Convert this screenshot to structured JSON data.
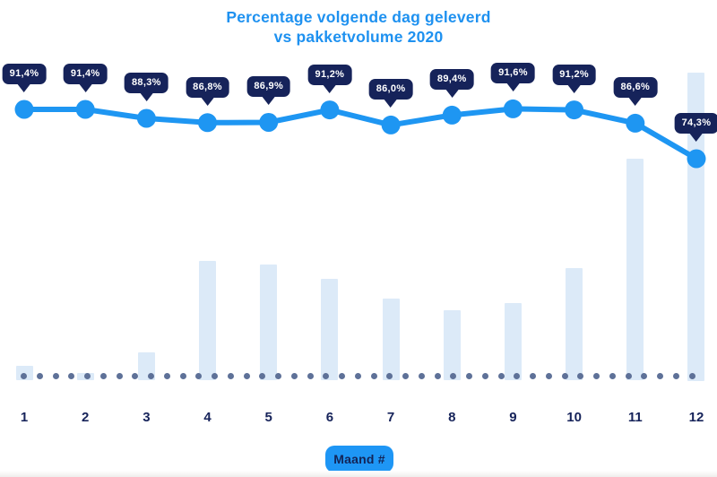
{
  "title": {
    "line1": "Percentage volgende dag geleverd",
    "line2": "vs pakketvolume 2020"
  },
  "x_axis": {
    "label": "Maand #",
    "categories": [
      "1",
      "2",
      "3",
      "4",
      "5",
      "6",
      "7",
      "8",
      "9",
      "10",
      "11",
      "12"
    ]
  },
  "chart_data": {
    "type": "line",
    "title": "Percentage volgende dag geleverd vs pakketvolume 2020",
    "categories": [
      1,
      2,
      3,
      4,
      5,
      6,
      7,
      8,
      9,
      10,
      11,
      12
    ],
    "xlabel": "Maand #",
    "ylabel": "",
    "legend": "none",
    "grid": "no gridlines; dotted baseline along x-axis; no numeric y-axis shown",
    "series": [
      {
        "name": "Percentage volgende dag geleverd",
        "type": "line",
        "unit": "%",
        "values": [
          91.4,
          91.4,
          88.3,
          86.8,
          86.9,
          91.2,
          86.0,
          89.4,
          91.6,
          91.2,
          86.6,
          74.3
        ],
        "point_labels": [
          "91,4%",
          "91,4%",
          "88,3%",
          "86,8%",
          "86,9%",
          "91,2%",
          "86,0%",
          "89,4%",
          "91,6%",
          "91,2%",
          "86,6%",
          "74,3%"
        ]
      },
      {
        "name": "Pakketvolume 2020",
        "type": "bar",
        "unit": "relative volume, % of December (no numeric axis shown)",
        "values_pct_of_max": [
          4.7,
          2.6,
          9.3,
          38.9,
          37.7,
          32.9,
          26.6,
          22.9,
          25.3,
          36.5,
          72.1,
          100
        ]
      }
    ]
  },
  "colors": {
    "accent_blue": "#1e96f2",
    "badge_navy": "#16235a",
    "bar_fill": "#dceaf8",
    "baseline_dot": "#5e7198",
    "label_navy": "#16235a",
    "background": "#ffffff"
  }
}
